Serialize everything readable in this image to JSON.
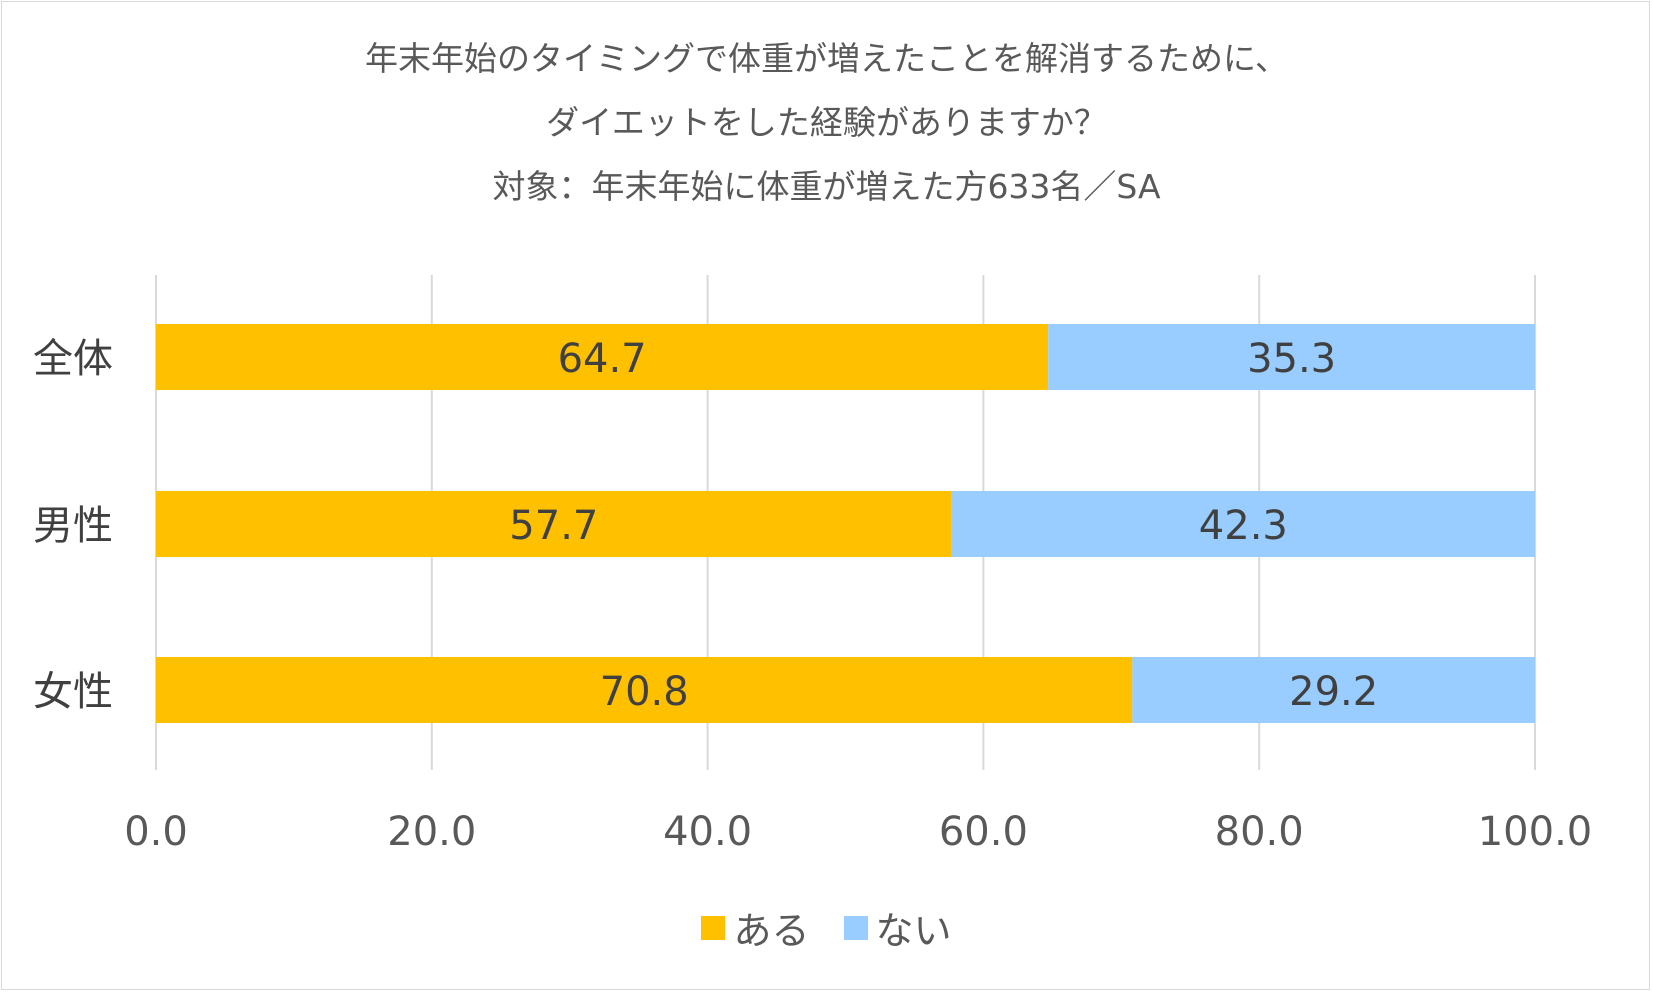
{
  "colors": {
    "aru": "#FFC000",
    "nai": "#99CCFF",
    "grid": "#D9D9D9"
  },
  "chart_data": {
    "type": "bar",
    "orientation": "horizontal",
    "stacked": true,
    "title": [
      "年末年始のタイミングで体重が増えたことを解消するために、",
      "ダイエットをした経験がありますか？",
      "対象：年末年始に体重が増えた方633名／SA"
    ],
    "categories": [
      "全体",
      "男性",
      "女性"
    ],
    "series": [
      {
        "name": "ある",
        "values": [
          64.7,
          57.7,
          70.8
        ],
        "labels": [
          "64.7",
          "57.7",
          "70.8"
        ]
      },
      {
        "name": "ない",
        "values": [
          35.3,
          42.3,
          29.2
        ],
        "labels": [
          "35.3",
          "42.3",
          "29.2"
        ]
      }
    ],
    "xlim": [
      0,
      100
    ],
    "xticks": [
      0,
      20,
      40,
      60,
      80,
      100
    ],
    "xtick_labels": [
      "0.0",
      "20.0",
      "40.0",
      "60.0",
      "80.0",
      "100.0"
    ],
    "grid": true,
    "legend_position": "bottom"
  }
}
